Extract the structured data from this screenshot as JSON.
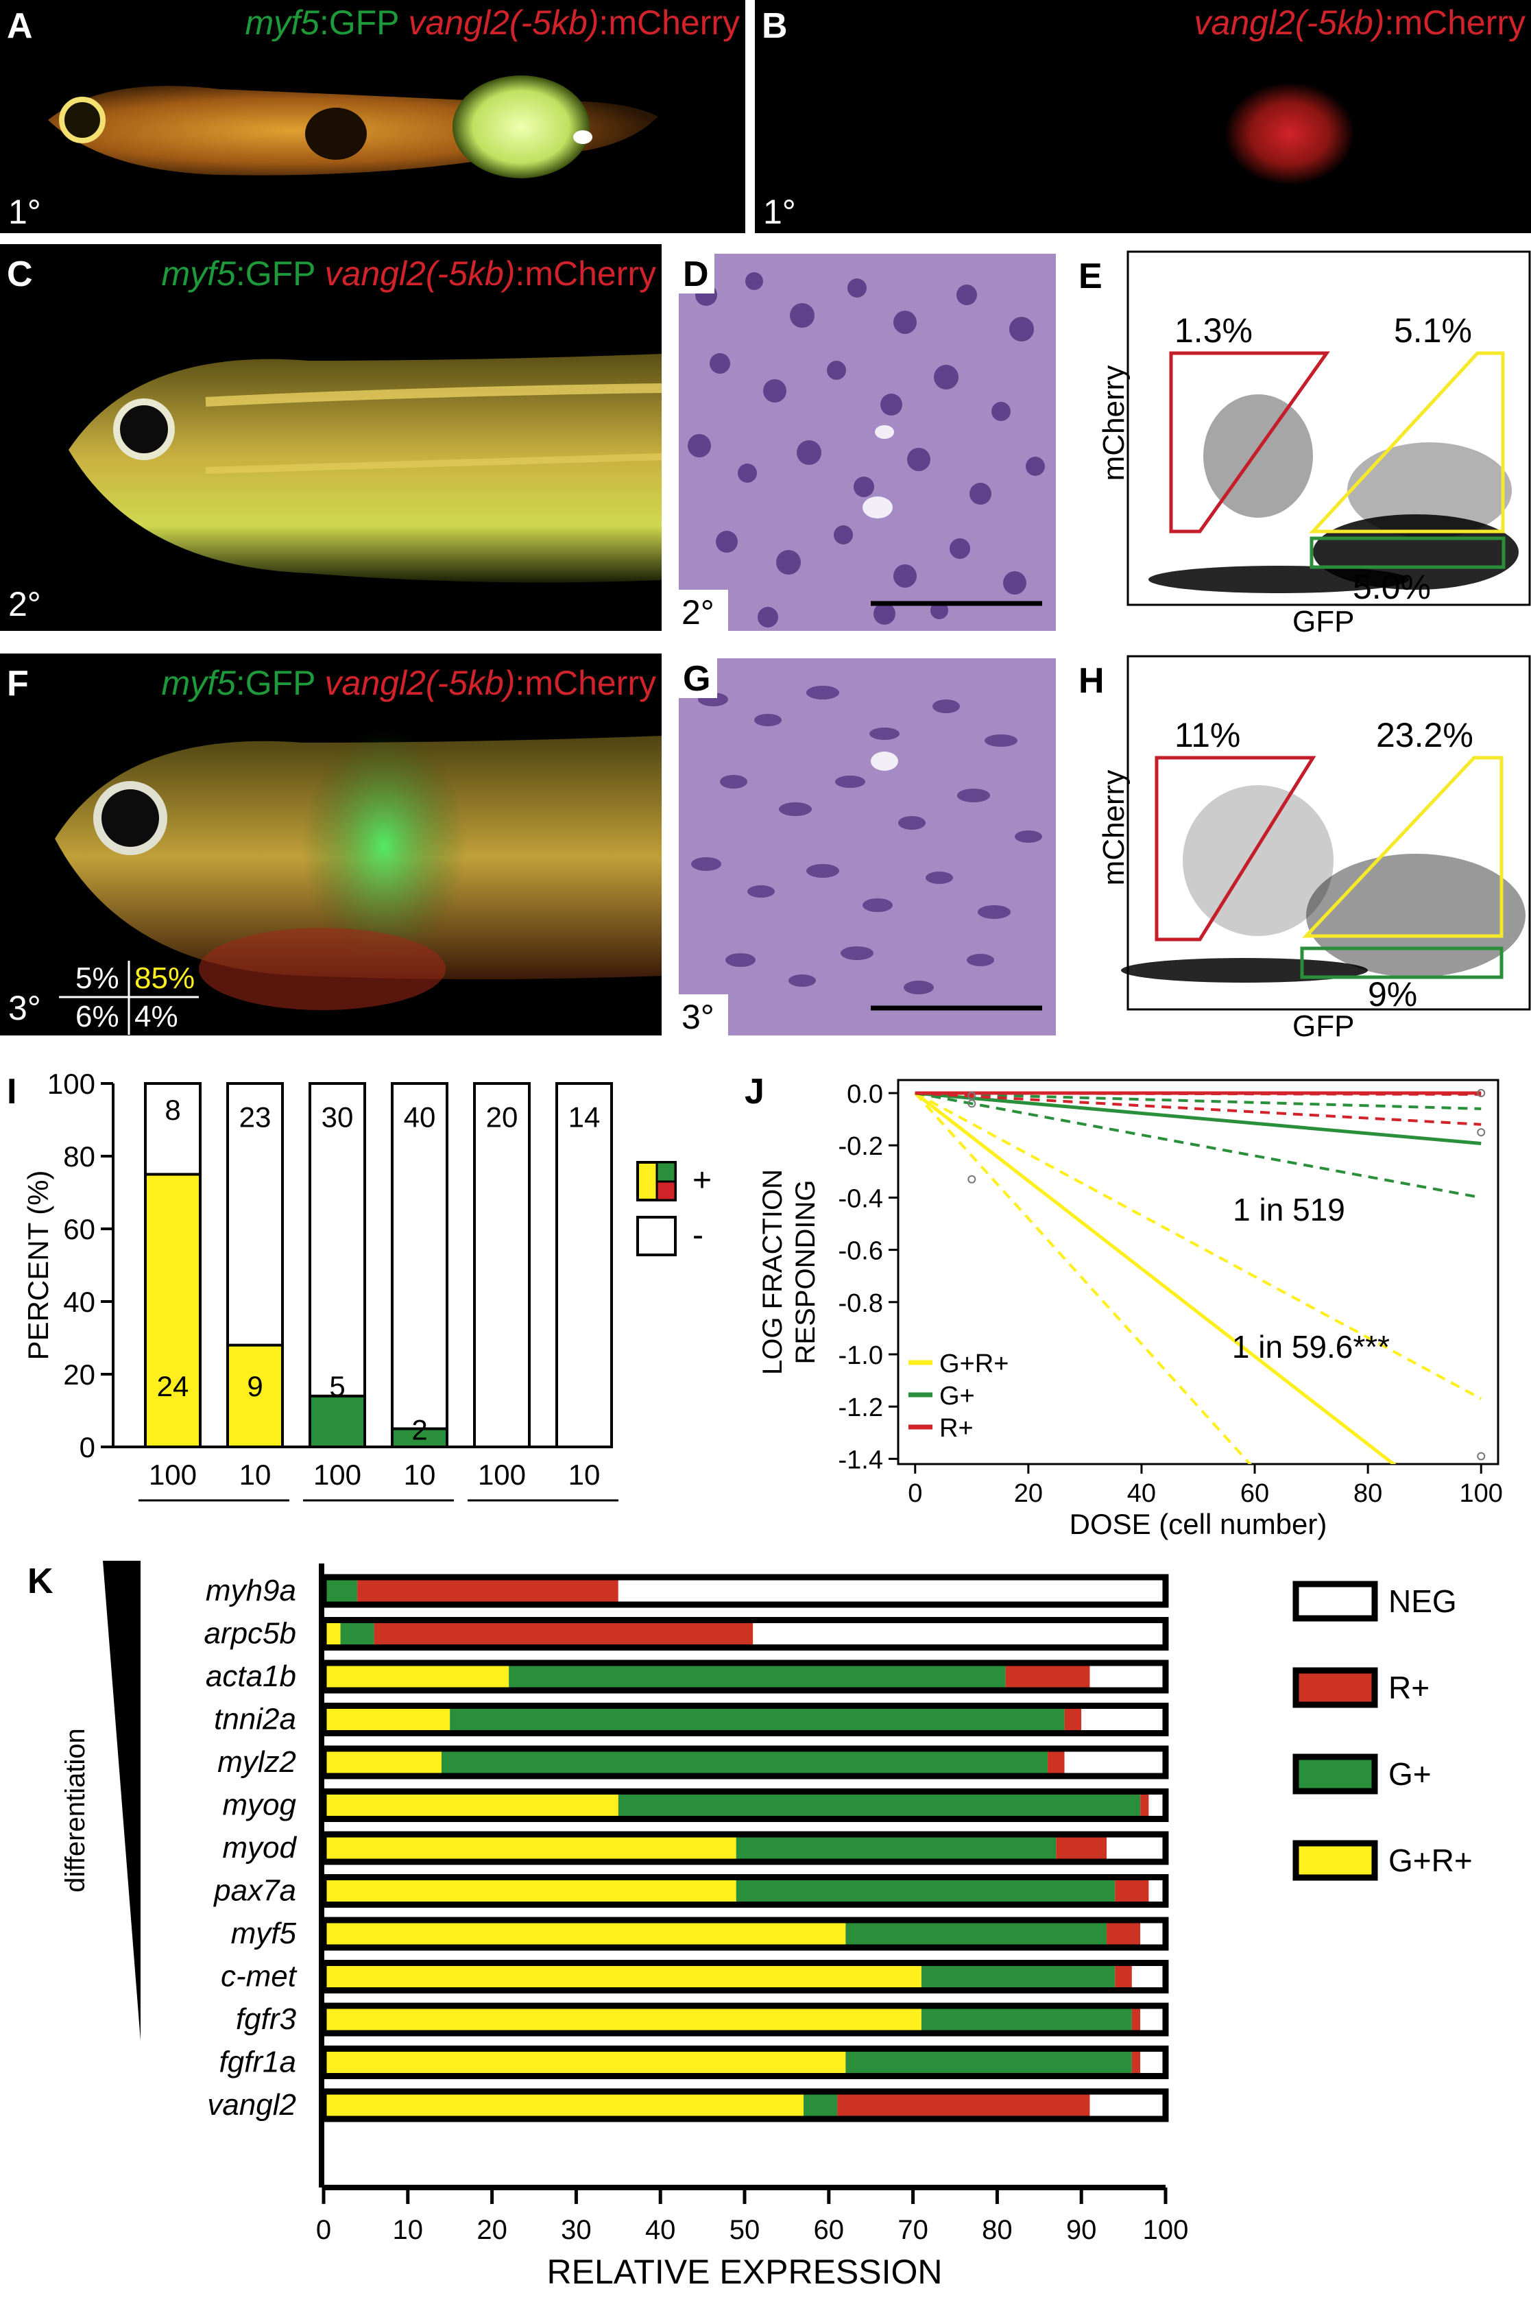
{
  "panels": {
    "A": {
      "label": "A",
      "gene1": "myf5",
      "suffix1": ":GFP",
      "gene2": "vangl2(-5kb)",
      "suffix2": ":mCherry",
      "passage": "1°"
    },
    "B": {
      "label": "B",
      "gene2": "vangl2(-5kb)",
      "suffix2": ":mCherry",
      "passage": "1°"
    },
    "C": {
      "label": "C",
      "gene1": "myf5",
      "suffix1": ":GFP",
      "gene2": "vangl2(-5kb)",
      "suffix2": ":mCherry",
      "passage": "2°"
    },
    "D": {
      "label": "D",
      "passage": "2°"
    },
    "E": {
      "label": "E",
      "xlabel": "GFP",
      "ylabel": "mCherry",
      "gate_red": "1.3%",
      "gate_yellow": "5.1%",
      "gate_green": "5.0%"
    },
    "F": {
      "label": "F",
      "gene1": "myf5",
      "suffix1": ":GFP",
      "gene2": "vangl2(-5kb)",
      "suffix2": ":mCherry",
      "passage": "3°",
      "grid_tl": "5%",
      "grid_tr": "85%",
      "grid_bl": "6%",
      "grid_br": "4%"
    },
    "G": {
      "label": "G",
      "passage": "3°"
    },
    "H": {
      "label": "H",
      "xlabel": "GFP",
      "ylabel": "mCherry",
      "gate_red": "11%",
      "gate_yellow": "23.2%",
      "gate_green": "9%"
    },
    "I": {
      "label": "I"
    },
    "J": {
      "label": "J"
    },
    "K": {
      "label": "K",
      "side_label": "differentiation"
    }
  },
  "colors": {
    "yellow": "#ffef1c",
    "green": "#2a8f3a",
    "red": "#cc3322",
    "bright_red": "#d2232a",
    "black": "#000000"
  },
  "chart_data": [
    {
      "panel": "I",
      "type": "bar",
      "ylabel": "PERCENT (%)",
      "ylim": [
        0,
        100
      ],
      "yticks": [
        0,
        20,
        40,
        60,
        80,
        100
      ],
      "categories": [
        "100",
        "10",
        "100",
        "10",
        "100",
        "10"
      ],
      "groups": [
        {
          "name": "G+R+",
          "span": [
            0,
            1
          ]
        },
        {
          "name": "G+",
          "span": [
            2,
            3
          ]
        },
        {
          "name": "R+",
          "span": [
            4,
            5
          ]
        }
      ],
      "percent_positive": [
        75,
        28,
        14,
        5,
        0,
        0
      ],
      "positive_counts": [
        "24",
        "9",
        "5",
        "2",
        "",
        ""
      ],
      "negative_counts": [
        "8",
        "23",
        "30",
        "40",
        "20",
        "14"
      ],
      "positive_colors": [
        "#ffef1c",
        "#ffef1c",
        "#2a8f3a",
        "#2a8f3a",
        "",
        ""
      ],
      "legend": [
        {
          "symbol": "positive",
          "text": "+"
        },
        {
          "symbol": "negative",
          "text": "-"
        }
      ]
    },
    {
      "panel": "J",
      "type": "line",
      "xlabel": "DOSE (cell number)",
      "ylabel": "LOG FRACTION RESPONDING",
      "xlim": [
        -3,
        103
      ],
      "ylim": [
        -1.42,
        0.05
      ],
      "xticks": [
        0,
        20,
        40,
        60,
        80,
        100
      ],
      "yticks": [
        0.0,
        -0.2,
        -0.4,
        -0.6,
        -0.8,
        -1.0,
        -1.2,
        -1.4
      ],
      "series": [
        {
          "name": "G+R+",
          "color": "#ffef1c",
          "points": [
            [
              0,
              0
            ],
            [
              100,
              -1.68
            ]
          ],
          "upper": [
            [
              0,
              0
            ],
            [
              100,
              -1.17
            ]
          ],
          "lower": [
            [
              0,
              0
            ],
            [
              100,
              -2.4
            ]
          ]
        },
        {
          "name": "G+",
          "color": "#2a8f3a",
          "points": [
            [
              0,
              0
            ],
            [
              100,
              -0.193
            ]
          ],
          "upper": [
            [
              0,
              0
            ],
            [
              100,
              -0.06
            ]
          ],
          "lower": [
            [
              0,
              0
            ],
            [
              100,
              -0.4
            ]
          ]
        },
        {
          "name": "R+",
          "color": "#d2232a",
          "points": [
            [
              0,
              0
            ],
            [
              100,
              0
            ]
          ],
          "upper": [
            [
              0,
              0
            ],
            [
              100,
              -0.005
            ]
          ],
          "lower": [
            [
              0,
              0
            ],
            [
              100,
              -0.12
            ]
          ]
        }
      ],
      "markers": [
        [
          10,
          -0.33
        ],
        [
          10,
          -0.01
        ],
        [
          10,
          -0.04
        ],
        [
          100,
          -1.39
        ],
        [
          100,
          0
        ],
        [
          100,
          -0.15
        ]
      ],
      "annotations": [
        "1 in 519",
        "1 in 59.6***"
      ]
    },
    {
      "panel": "K",
      "type": "bar",
      "orientation": "horizontal-stacked",
      "xlabel": "RELATIVE EXPRESSION",
      "xlim": [
        0,
        100
      ],
      "xticks": [
        0,
        10,
        20,
        30,
        40,
        50,
        60,
        70,
        80,
        90,
        100
      ],
      "categories": [
        "myh9a",
        "arpc5b",
        "acta1b",
        "tnni2a",
        "mylz2",
        "myog",
        "myod",
        "pax7a",
        "myf5",
        "c-met",
        "fgfr3",
        "fgfr1a",
        "vangl2"
      ],
      "series": [
        {
          "name": "G+R+",
          "color": "#ffef1c",
          "values": [
            0,
            2,
            22,
            15,
            14,
            35,
            49,
            49,
            62,
            71,
            71,
            62,
            57
          ]
        },
        {
          "name": "G+",
          "color": "#2a8f3a",
          "values": [
            4,
            4,
            59,
            73,
            72,
            62,
            38,
            45,
            31,
            23,
            25,
            34,
            4
          ]
        },
        {
          "name": "R+",
          "color": "#cc3322",
          "values": [
            31,
            45,
            10,
            2,
            2,
            1,
            6,
            4,
            4,
            2,
            1,
            1,
            30
          ]
        },
        {
          "name": "NEG",
          "color": "#ffffff",
          "values": [
            65,
            49,
            9,
            10,
            12,
            2,
            7,
            2,
            3,
            4,
            3,
            3,
            9
          ]
        }
      ],
      "legend_order": [
        "NEG",
        "R+",
        "G+",
        "G+R+"
      ]
    }
  ]
}
